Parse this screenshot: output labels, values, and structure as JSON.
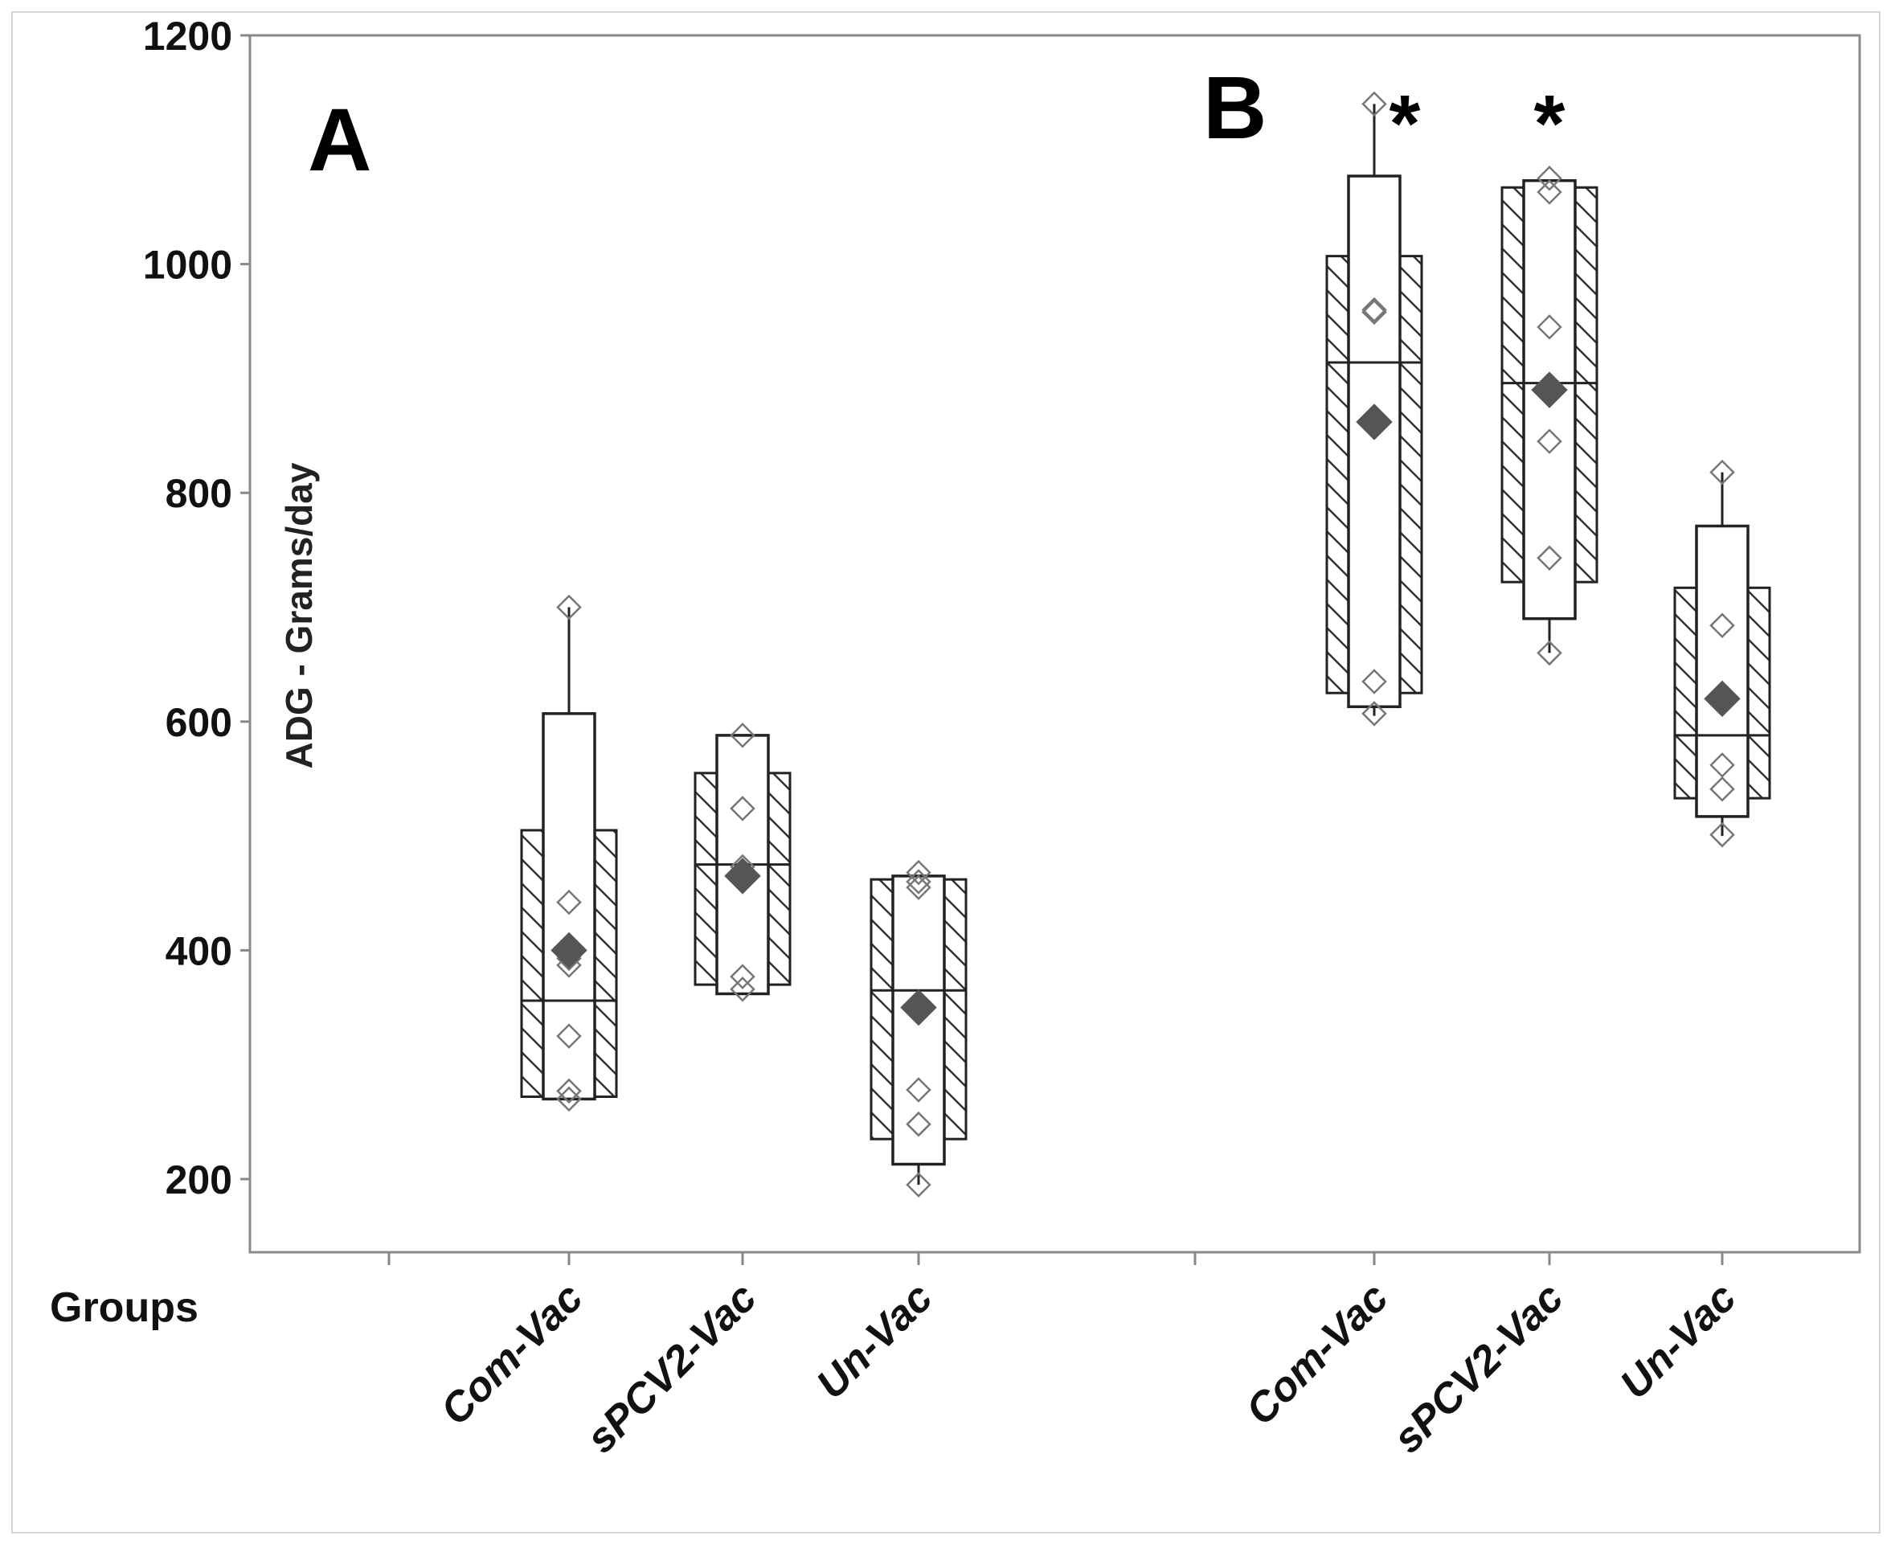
{
  "chart_data": {
    "type": "boxplot",
    "ylabel": "ADG - Grams/day",
    "xlabel": "Groups",
    "ylim": [
      130,
      1200
    ],
    "yticks": [
      200,
      400,
      600,
      800,
      1000,
      1200
    ],
    "panels": [
      {
        "label": "A",
        "groups": [
          {
            "name": "Com-Vac",
            "significant": false,
            "outer_box": [
              272,
              505
            ],
            "inner_box": [
              270,
              607
            ],
            "whisker": [
              270,
              700
            ],
            "median": 356,
            "mean": 400,
            "points": [
              700,
              442,
              393,
              387,
              325,
              277,
              270
            ]
          },
          {
            "name": "sPCV2-Vac",
            "significant": false,
            "outer_box": [
              370,
              555
            ],
            "inner_box": [
              362,
              588
            ],
            "whisker": [
              362,
              588
            ],
            "median": 475,
            "mean": 465,
            "points": [
              588,
              524,
              473,
              377,
              366
            ]
          },
          {
            "name": "Un-Vac",
            "significant": false,
            "outer_box": [
              235,
              462
            ],
            "inner_box": [
              213,
              465
            ],
            "whisker": [
              195,
              465
            ],
            "median": 365,
            "mean": 350,
            "points": [
              468,
              460,
              455,
              278,
              248,
              195
            ]
          }
        ]
      },
      {
        "label": "B",
        "groups": [
          {
            "name": "Com-Vac",
            "significant": true,
            "sig_mark": "*",
            "outer_box": [
              625,
              1007
            ],
            "inner_box": [
              613,
              1077
            ],
            "whisker": [
              605,
              1140
            ],
            "median": 914,
            "mean": 862,
            "points": [
              1140,
              960,
              958,
              635,
              607
            ]
          },
          {
            "name": "sPCV2-Vac",
            "significant": true,
            "sig_mark": "*",
            "outer_box": [
              722,
              1067
            ],
            "inner_box": [
              690,
              1073
            ],
            "whisker": [
              660,
              1073
            ],
            "median": 896,
            "mean": 890,
            "points": [
              1075,
              1063,
              945,
              845,
              743,
              660
            ]
          },
          {
            "name": "Un-Vac",
            "significant": false,
            "outer_box": [
              533,
              717
            ],
            "inner_box": [
              517,
              771
            ],
            "whisker": [
              500,
              818
            ],
            "median": 588,
            "mean": 620,
            "points": [
              818,
              684,
              562,
              541,
              501
            ]
          }
        ]
      }
    ]
  },
  "colors": {
    "box_stroke": "#222222",
    "hatch": "#333333",
    "mean_marker": "#555555",
    "point_stroke": "#777777",
    "axis": "#888888"
  }
}
